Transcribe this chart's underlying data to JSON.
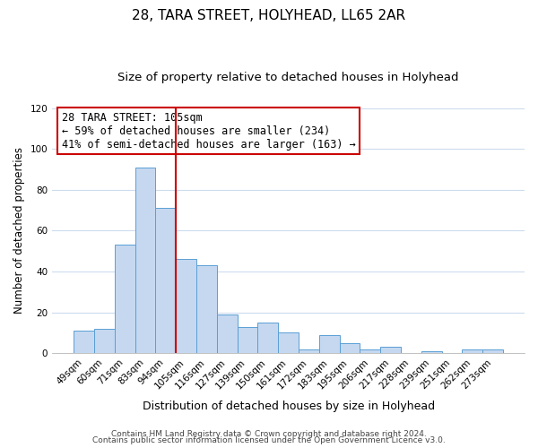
{
  "title": "28, TARA STREET, HOLYHEAD, LL65 2AR",
  "subtitle": "Size of property relative to detached houses in Holyhead",
  "xlabel": "Distribution of detached houses by size in Holyhead",
  "ylabel": "Number of detached properties",
  "categories": [
    "49sqm",
    "60sqm",
    "71sqm",
    "83sqm",
    "94sqm",
    "105sqm",
    "116sqm",
    "127sqm",
    "139sqm",
    "150sqm",
    "161sqm",
    "172sqm",
    "183sqm",
    "195sqm",
    "206sqm",
    "217sqm",
    "228sqm",
    "239sqm",
    "251sqm",
    "262sqm",
    "273sqm"
  ],
  "values": [
    11,
    12,
    53,
    91,
    71,
    46,
    43,
    19,
    13,
    15,
    10,
    2,
    9,
    5,
    2,
    3,
    0,
    1,
    0,
    2,
    2
  ],
  "bar_color": "#c5d8f0",
  "bar_edge_color": "#5a9fd4",
  "vline_x": 4.5,
  "vline_color": "#cc0000",
  "annotation_line1": "28 TARA STREET: 105sqm",
  "annotation_line2": "← 59% of detached houses are smaller (234)",
  "annotation_line3": "41% of semi-detached houses are larger (163) →",
  "annotation_box_color": "#ffffff",
  "annotation_box_edge_color": "#cc0000",
  "ylim": [
    0,
    120
  ],
  "yticks": [
    0,
    20,
    40,
    60,
    80,
    100,
    120
  ],
  "footer_line1": "Contains HM Land Registry data © Crown copyright and database right 2024.",
  "footer_line2": "Contains public sector information licensed under the Open Government Licence v3.0.",
  "title_fontsize": 11,
  "subtitle_fontsize": 9.5,
  "xlabel_fontsize": 9,
  "ylabel_fontsize": 8.5,
  "tick_fontsize": 7.5,
  "annotation_fontsize": 8.5,
  "footer_fontsize": 6.5,
  "background_color": "#ffffff",
  "grid_color": "#cddcee"
}
